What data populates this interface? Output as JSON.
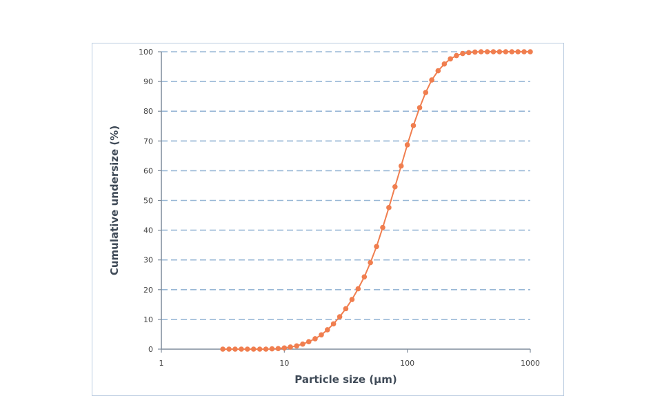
{
  "chart_data": {
    "type": "line",
    "xlabel": "Particle size (µm)",
    "ylabel": "Cumulative undersize (%)",
    "x_scale": "log",
    "xlim": [
      1,
      1000
    ],
    "ylim": [
      0,
      100
    ],
    "x_ticks": [
      1,
      10,
      100,
      1000
    ],
    "x_tick_labels": [
      "1",
      "10",
      "100",
      "1000"
    ],
    "y_ticks": [
      0,
      10,
      20,
      30,
      40,
      50,
      60,
      70,
      80,
      90,
      100
    ],
    "y_tick_labels": [
      "0",
      "10",
      "20",
      "30",
      "40",
      "50",
      "60",
      "70",
      "80",
      "90",
      "100"
    ],
    "grid": "horizontal dashed",
    "legend": "none",
    "series": [
      {
        "x": [
          3.16,
          3.55,
          3.98,
          4.47,
          5.01,
          5.62,
          6.31,
          7.08,
          7.94,
          8.91,
          10.0,
          11.2,
          12.6,
          14.1,
          15.8,
          17.8,
          20.0,
          22.4,
          25.1,
          28.2,
          31.6,
          35.5,
          39.8,
          44.7,
          50.1,
          56.2,
          63.1,
          70.8,
          79.4,
          89.1,
          100,
          112,
          126,
          141,
          158,
          178,
          200,
          224,
          251,
          282,
          316,
          355,
          398,
          447,
          501,
          562,
          631,
          708,
          794,
          891,
          1000
        ],
        "y": [
          0,
          0,
          0,
          0,
          0,
          0,
          0,
          0,
          0.1,
          0.2,
          0.4,
          0.7,
          1.1,
          1.7,
          2.5,
          3.5,
          4.8,
          6.5,
          8.5,
          10.9,
          13.6,
          16.7,
          20.3,
          24.3,
          29.1,
          34.5,
          40.9,
          47.6,
          54.6,
          61.6,
          68.7,
          75.2,
          81.2,
          86.3,
          90.5,
          93.6,
          95.9,
          97.6,
          98.7,
          99.4,
          99.7,
          99.9,
          100,
          100,
          100,
          100,
          100,
          100,
          100,
          100,
          100
        ],
        "color": "#f07e4f"
      }
    ],
    "colors": {
      "axis": "#7f8c9b",
      "grid": "#98b7d6",
      "frame": "#b9cbe0"
    }
  }
}
